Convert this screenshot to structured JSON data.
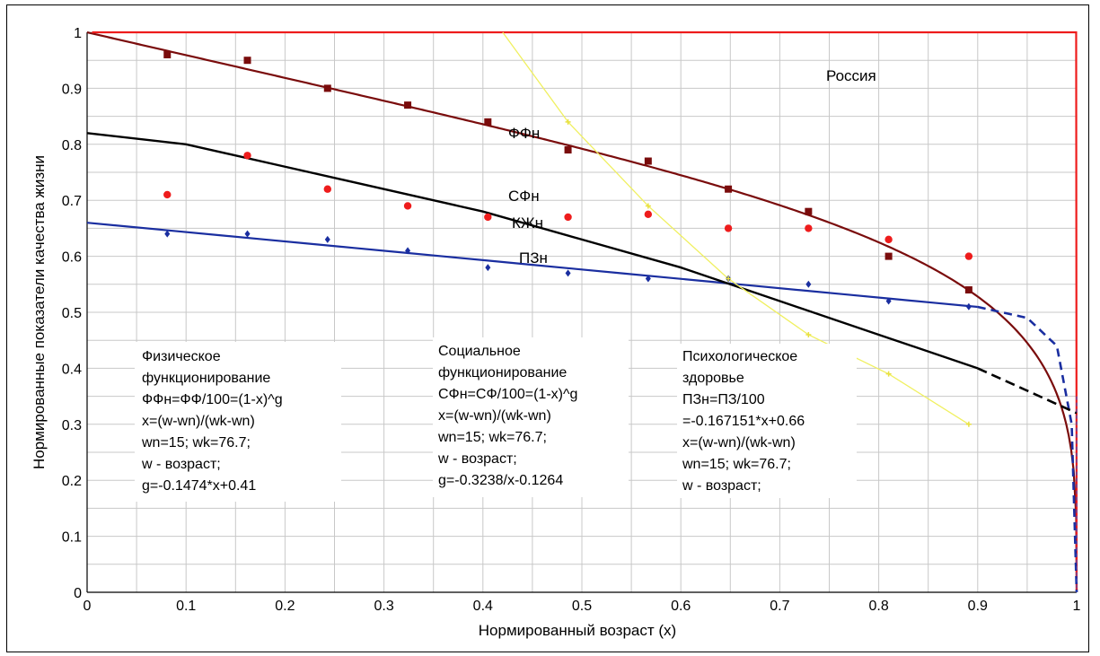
{
  "chart_data": {
    "type": "scatter",
    "annotation_title": "Россия",
    "xlabel": "Нормированный возраст (x)",
    "ylabel": "Нормированные показатели качества жизни",
    "xlim": [
      0,
      1
    ],
    "ylim": [
      0,
      1
    ],
    "x_ticks": [
      "0",
      "0.1",
      "0.2",
      "0.3",
      "0.4",
      "0.5",
      "0.6",
      "0.7",
      "0.8",
      "0.9",
      "1"
    ],
    "y_ticks": [
      "0",
      "0.1",
      "0.2",
      "0.3",
      "0.4",
      "0.5",
      "0.6",
      "0.7",
      "0.8",
      "0.9",
      "1"
    ],
    "grid": true,
    "series": [
      {
        "name": "ФФн",
        "color": "#7a0c0c",
        "marker": "square",
        "points": [
          [
            0.081,
            0.96
          ],
          [
            0.162,
            0.95
          ],
          [
            0.243,
            0.9
          ],
          [
            0.324,
            0.87
          ],
          [
            0.405,
            0.84
          ],
          [
            0.486,
            0.79
          ],
          [
            0.567,
            0.77
          ],
          [
            0.648,
            0.72
          ],
          [
            0.729,
            0.68
          ],
          [
            0.81,
            0.6
          ],
          [
            0.891,
            0.54
          ]
        ],
        "fit": {
          "g_a": -0.1474,
          "g_b": 0.41
        }
      },
      {
        "name": "СФн",
        "color": "#ee1c1c",
        "marker": "circle",
        "points": [
          [
            0.081,
            0.71
          ],
          [
            0.162,
            0.78
          ],
          [
            0.243,
            0.72
          ],
          [
            0.324,
            0.69
          ],
          [
            0.405,
            0.67
          ],
          [
            0.486,
            0.67
          ],
          [
            0.567,
            0.675
          ],
          [
            0.648,
            0.65
          ],
          [
            0.729,
            0.65
          ],
          [
            0.81,
            0.63
          ],
          [
            0.891,
            0.6
          ]
        ],
        "fit": {
          "g_a": -0.3238,
          "g_b": -0.1264
        }
      },
      {
        "name": "ПЗн",
        "color": "#1a2ea0",
        "marker": "diamond",
        "points": [
          [
            0.081,
            0.64
          ],
          [
            0.162,
            0.64
          ],
          [
            0.243,
            0.63
          ],
          [
            0.324,
            0.61
          ],
          [
            0.405,
            0.58
          ],
          [
            0.486,
            0.57
          ],
          [
            0.567,
            0.56
          ],
          [
            0.648,
            0.56
          ],
          [
            0.729,
            0.55
          ],
          [
            0.81,
            0.52
          ],
          [
            0.891,
            0.51
          ]
        ],
        "fit": {
          "slope": -0.167151,
          "intercept": 0.66
        }
      },
      {
        "name": "КЖн",
        "color": "#000000",
        "marker": "none",
        "points": [
          [
            0,
            0.82
          ],
          [
            0.1,
            0.8
          ],
          [
            0.2,
            0.76
          ],
          [
            0.3,
            0.72
          ],
          [
            0.4,
            0.68
          ],
          [
            0.5,
            0.63
          ],
          [
            0.6,
            0.58
          ],
          [
            0.7,
            0.52
          ],
          [
            0.8,
            0.46
          ],
          [
            0.9,
            0.4
          ],
          [
            0.95,
            0.36
          ],
          [
            1.0,
            0.32
          ]
        ]
      },
      {
        "color": "#f0f060",
        "marker": "cross",
        "points": [
          [
            0.42,
            1.0
          ],
          [
            0.486,
            0.84
          ],
          [
            0.567,
            0.69
          ],
          [
            0.648,
            0.56
          ],
          [
            0.729,
            0.46
          ],
          [
            0.81,
            0.39
          ],
          [
            0.891,
            0.3
          ]
        ]
      }
    ],
    "annotations": [
      {
        "lines": [
          "Физическое",
          "функционирование",
          "ФФн=ФФ/100=(1-x)^g",
          "x=(w-wn)/(wk-wn)",
          "wn=15; wk=76.7;",
          "w - возраст;",
          "g=-0.1474*x+0.41"
        ]
      },
      {
        "lines": [
          "Социальное",
          "функционирование",
          "СФн=СФ/100=(1-x)^g",
          "x=(w-wn)/(wk-wn)",
          "wn=15; wk=76.7;",
          "w - возраст;",
          "g=-0.3238/x-0.1264"
        ]
      },
      {
        "lines": [
          "Психологическое",
          "здоровье",
          "ПЗн=ПЗ/100",
          "=-0.167151*x+0.66",
          "x=(w-wn)/(wk-wn)",
          "wn=15; wk=76.7;",
          "w - возраст;"
        ]
      }
    ]
  }
}
